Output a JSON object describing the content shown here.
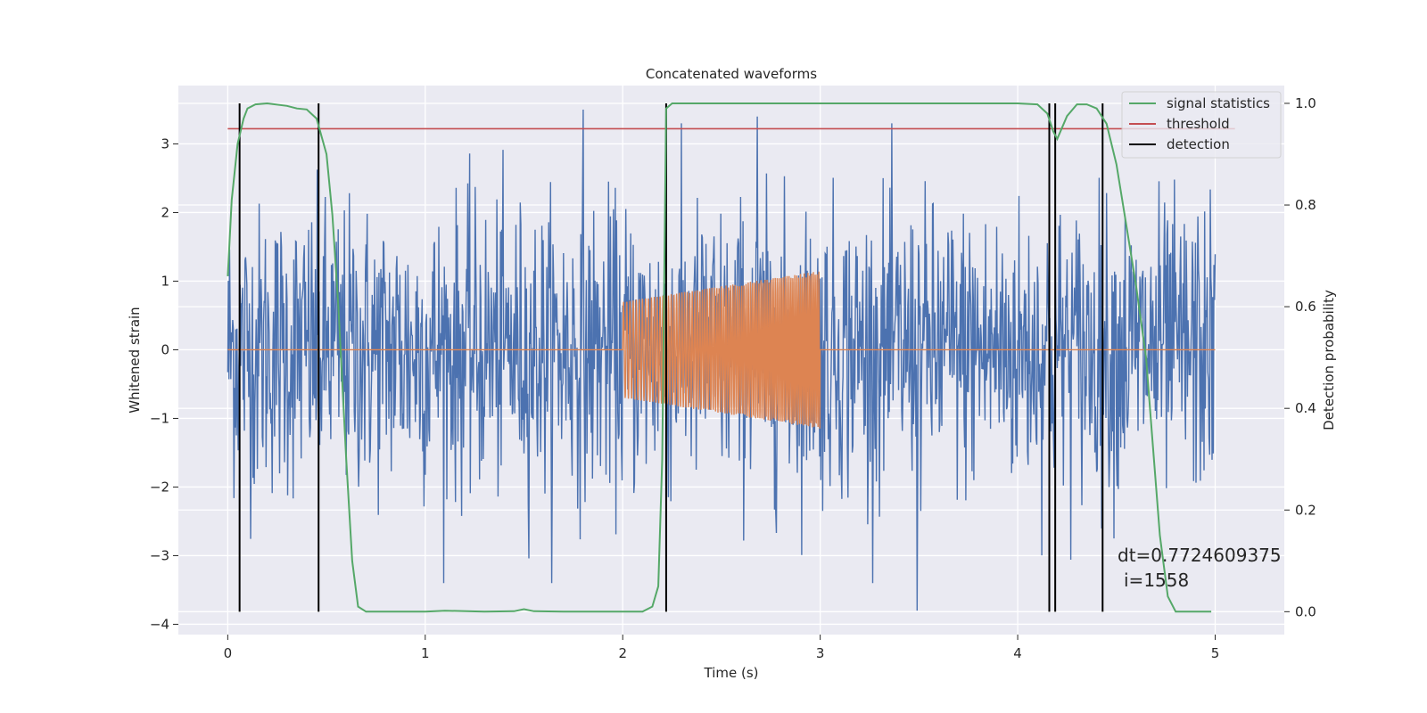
{
  "chart_data": {
    "type": "line",
    "title": "Concatenated waveforms",
    "xlabel": "Time (s)",
    "ylabel": "Whitened strain",
    "ylabel_right": "Detection probability",
    "xlim": [
      -0.25,
      5.35
    ],
    "ylim": [
      -4.15,
      3.85
    ],
    "ylim_right": [
      -0.045,
      1.035
    ],
    "x_ticks": [
      0,
      1,
      2,
      3,
      4,
      5
    ],
    "y_ticks": [
      -4,
      -3,
      -2,
      -1,
      0,
      1,
      2,
      3
    ],
    "y_ticks_right": [
      0.0,
      0.2,
      0.4,
      0.6,
      0.8,
      1.0
    ],
    "x_tick_labels": [
      "0",
      "1",
      "2",
      "3",
      "4",
      "5"
    ],
    "y_tick_labels": [
      "−4",
      "−3",
      "−2",
      "−1",
      "0",
      "1",
      "2",
      "3"
    ],
    "y_tick_labels_right": [
      "0.0",
      "0.2",
      "0.4",
      "0.6",
      "0.8",
      "1.0"
    ],
    "grid": true,
    "legend_placement": "top-right",
    "series_noise": {
      "color": "#4c72b0",
      "x_range": [
        0,
        5
      ],
      "approx_amplitude_range": [
        -3.8,
        3.5
      ],
      "representative_peaks": [
        {
          "x": 1.8,
          "y": 3.5
        },
        {
          "x": 3.49,
          "y": -3.8
        },
        {
          "x": 2.68,
          "y": 3.4
        }
      ]
    },
    "series_injection": {
      "color": "#dd8452",
      "x_range": [
        2.0,
        3.0
      ],
      "envelope_start": 0.7,
      "envelope_end": 1.15
    },
    "legend": [
      {
        "name": "signal statistics",
        "color": "#55a868"
      },
      {
        "name": "threshold",
        "color": "#c44e52"
      },
      {
        "name": "detection",
        "color": "#000000"
      }
    ],
    "threshold": 0.95,
    "signal_statistics": {
      "x": [
        0.0,
        0.02,
        0.05,
        0.08,
        0.1,
        0.14,
        0.2,
        0.3,
        0.35,
        0.4,
        0.45,
        0.5,
        0.53,
        0.56,
        0.6,
        0.63,
        0.66,
        0.7,
        0.8,
        1.0,
        1.1,
        1.3,
        1.45,
        1.5,
        1.55,
        1.7,
        2.0,
        2.1,
        2.15,
        2.18,
        2.2,
        2.22,
        2.25,
        2.3,
        2.5,
        3.0,
        3.5,
        4.0,
        4.1,
        4.15,
        4.18,
        4.2,
        4.25,
        4.3,
        4.35,
        4.4,
        4.45,
        4.5,
        4.55,
        4.6,
        4.65,
        4.68,
        4.72,
        4.76,
        4.8,
        4.9,
        4.98
      ],
      "y": [
        0.66,
        0.81,
        0.92,
        0.97,
        0.99,
        0.998,
        1.0,
        0.995,
        0.99,
        0.988,
        0.97,
        0.9,
        0.78,
        0.6,
        0.3,
        0.1,
        0.01,
        0.0,
        0.0,
        0.0,
        0.002,
        0.0,
        0.001,
        0.005,
        0.001,
        0.0,
        0.0,
        0.0,
        0.01,
        0.05,
        0.3,
        0.99,
        1.0,
        1.0,
        1.0,
        1.0,
        1.0,
        1.0,
        0.998,
        0.98,
        0.945,
        0.93,
        0.975,
        0.998,
        0.998,
        0.99,
        0.96,
        0.88,
        0.76,
        0.64,
        0.5,
        0.35,
        0.15,
        0.03,
        0.0,
        0.0,
        0.0
      ]
    },
    "detections": [
      0.06,
      0.46,
      2.22,
      4.16,
      4.19,
      4.43
    ],
    "annotation_line1": "dt=0.7724609375",
    "annotation_line2": "i=1558"
  }
}
